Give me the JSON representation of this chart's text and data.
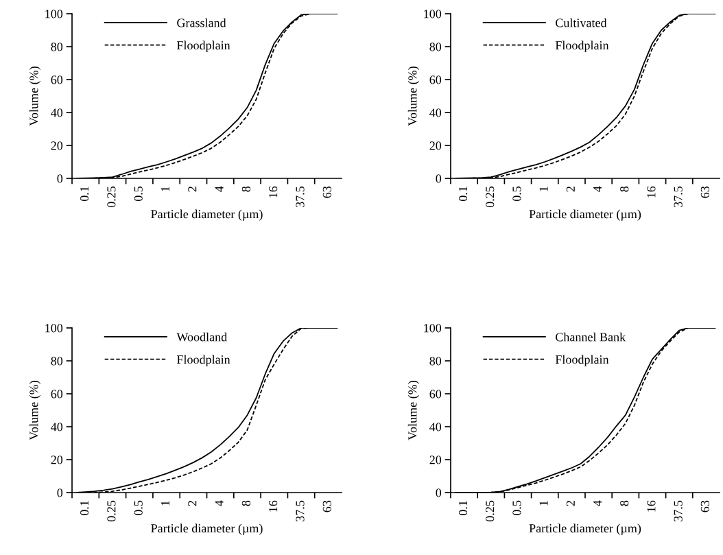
{
  "chart_data": [
    {
      "type": "line",
      "xlabel": "Particle diameter (µm)",
      "ylabel": "Volume (%)",
      "categories": [
        null,
        "0.1",
        null,
        null,
        "0.25",
        null,
        null,
        "0.5",
        null,
        null,
        "1",
        null,
        null,
        "2",
        null,
        null,
        "4",
        null,
        null,
        "8",
        null,
        null,
        "16",
        null,
        null,
        "37.5",
        null,
        null,
        "63",
        null
      ],
      "ylim": [
        0,
        100
      ],
      "yticks": [
        0,
        20,
        40,
        60,
        80,
        100
      ],
      "legend": "top left",
      "grid": false,
      "marker": "none",
      "series": [
        {
          "name": "Grassland",
          "color": "#000000",
          "line_style": "solid",
          "values": [
            0,
            0.1,
            0.3,
            0.5,
            0.8,
            2.4,
            4.2,
            5.6,
            7,
            8.3,
            10,
            11.8,
            13.9,
            16,
            18.3,
            21.5,
            25.7,
            30.6,
            36,
            43,
            53.5,
            69,
            82,
            89.6,
            95,
            99.3,
            100,
            100,
            100,
            100
          ]
        },
        {
          "name": "Floodplain",
          "color": "#000000",
          "line_style": "dashed",
          "values": [
            0,
            0,
            0.1,
            0.2,
            0.4,
            1.2,
            2.6,
            3.9,
            5.1,
            6.4,
            7.9,
            9.6,
            11.5,
            13.5,
            15.6,
            18.3,
            22,
            26.5,
            31.5,
            38,
            48,
            64,
            79,
            88,
            94.4,
            98.6,
            100,
            100,
            100,
            100
          ]
        }
      ]
    },
    {
      "type": "line",
      "xlabel": "Particle diameter (µm)",
      "ylabel": "Volume (%)",
      "categories": [
        null,
        "0.1",
        null,
        null,
        "0.25",
        null,
        null,
        "0.5",
        null,
        null,
        "1",
        null,
        null,
        "2",
        null,
        null,
        "4",
        null,
        null,
        "8",
        null,
        null,
        "16",
        null,
        null,
        "37.5",
        null,
        null,
        "63",
        null
      ],
      "ylim": [
        0,
        100
      ],
      "yticks": [
        0,
        20,
        40,
        60,
        80,
        100
      ],
      "legend": "top left",
      "grid": false,
      "marker": "none",
      "series": [
        {
          "name": "Cultivated",
          "color": "#000000",
          "line_style": "solid",
          "values": [
            0,
            0.1,
            0.2,
            0.4,
            0.8,
            2.2,
            4,
            5.5,
            6.9,
            8.3,
            10,
            12,
            14.2,
            16.5,
            19,
            22,
            26.5,
            31.5,
            37,
            44,
            54,
            69,
            82,
            90,
            95,
            99,
            100,
            100,
            100,
            100
          ]
        },
        {
          "name": "Floodplain",
          "color": "#000000",
          "line_style": "dashed",
          "values": [
            0,
            0,
            0.1,
            0.2,
            0.4,
            1.1,
            2.4,
            3.7,
            5,
            6.3,
            7.8,
            9.5,
            11.5,
            13.6,
            16,
            19,
            22.5,
            27,
            32,
            39,
            50,
            65,
            79,
            88,
            94,
            98.5,
            100,
            100,
            100,
            100
          ]
        }
      ]
    },
    {
      "type": "line",
      "xlabel": "Particle diameter (µm)",
      "ylabel": "Volume (%)",
      "categories": [
        null,
        "0.1",
        null,
        null,
        "0.25",
        null,
        null,
        "0.5",
        null,
        null,
        "1",
        null,
        null,
        "2",
        null,
        null,
        "4",
        null,
        null,
        "8",
        null,
        null,
        "16",
        null,
        null,
        "37.5",
        null,
        null,
        "63",
        null
      ],
      "ylim": [
        0,
        100
      ],
      "yticks": [
        0,
        20,
        40,
        60,
        80,
        100
      ],
      "legend": "top left",
      "grid": false,
      "marker": "none",
      "series": [
        {
          "name": "Woodland",
          "color": "#000000",
          "line_style": "solid",
          "values": [
            0,
            0.4,
            0.8,
            1.4,
            2.2,
            3.5,
            4.8,
            6.5,
            8,
            9.7,
            11.5,
            13.6,
            15.8,
            18.3,
            21.2,
            24.7,
            29,
            34,
            39.5,
            47,
            57.5,
            72,
            84.5,
            92,
            97,
            100,
            100,
            100,
            100,
            100
          ]
        },
        {
          "name": "Floodplain",
          "color": "#000000",
          "line_style": "dashed",
          "values": [
            0,
            0,
            0.1,
            0.3,
            0.8,
            1.6,
            2.7,
            3.8,
            5,
            6.2,
            7.5,
            9,
            10.7,
            12.7,
            15,
            17.5,
            21,
            25.5,
            30.5,
            38,
            53,
            68.5,
            78,
            87,
            95,
            99.7,
            100,
            100,
            100,
            100
          ]
        }
      ]
    },
    {
      "type": "line",
      "xlabel": "Particle diameter (µm)",
      "ylabel": "Volume (%)",
      "categories": [
        null,
        "0.1",
        null,
        null,
        "0.25",
        null,
        null,
        "0.5",
        null,
        null,
        "1",
        null,
        null,
        "2",
        null,
        null,
        "4",
        null,
        null,
        "8",
        null,
        null,
        "16",
        null,
        null,
        "37.5",
        null,
        null,
        "63",
        null
      ],
      "ylim": [
        0,
        100
      ],
      "yticks": [
        0,
        20,
        40,
        60,
        80,
        100
      ],
      "legend": "top left",
      "grid": false,
      "marker": "none",
      "series": [
        {
          "name": "Channel Bank",
          "color": "#000000",
          "line_style": "solid",
          "values": [
            0,
            0,
            0,
            0,
            0.1,
            0.6,
            1.9,
            3.6,
            5.2,
            7,
            9,
            11,
            13,
            15,
            17.5,
            22,
            27.5,
            33.5,
            40.5,
            47,
            58,
            70,
            81,
            87,
            93,
            98.5,
            100,
            100,
            100,
            100
          ]
        },
        {
          "name": "Floodplain",
          "color": "#000000",
          "line_style": "dashed",
          "values": [
            0,
            0,
            0,
            0,
            0.1,
            0.5,
            1.6,
            3,
            4.4,
            5.8,
            7.5,
            9.3,
            11.2,
            13.3,
            15.6,
            19.5,
            24,
            29,
            35,
            42,
            53,
            67,
            78,
            86,
            92,
            97.5,
            100,
            100,
            100,
            100
          ]
        }
      ]
    }
  ]
}
